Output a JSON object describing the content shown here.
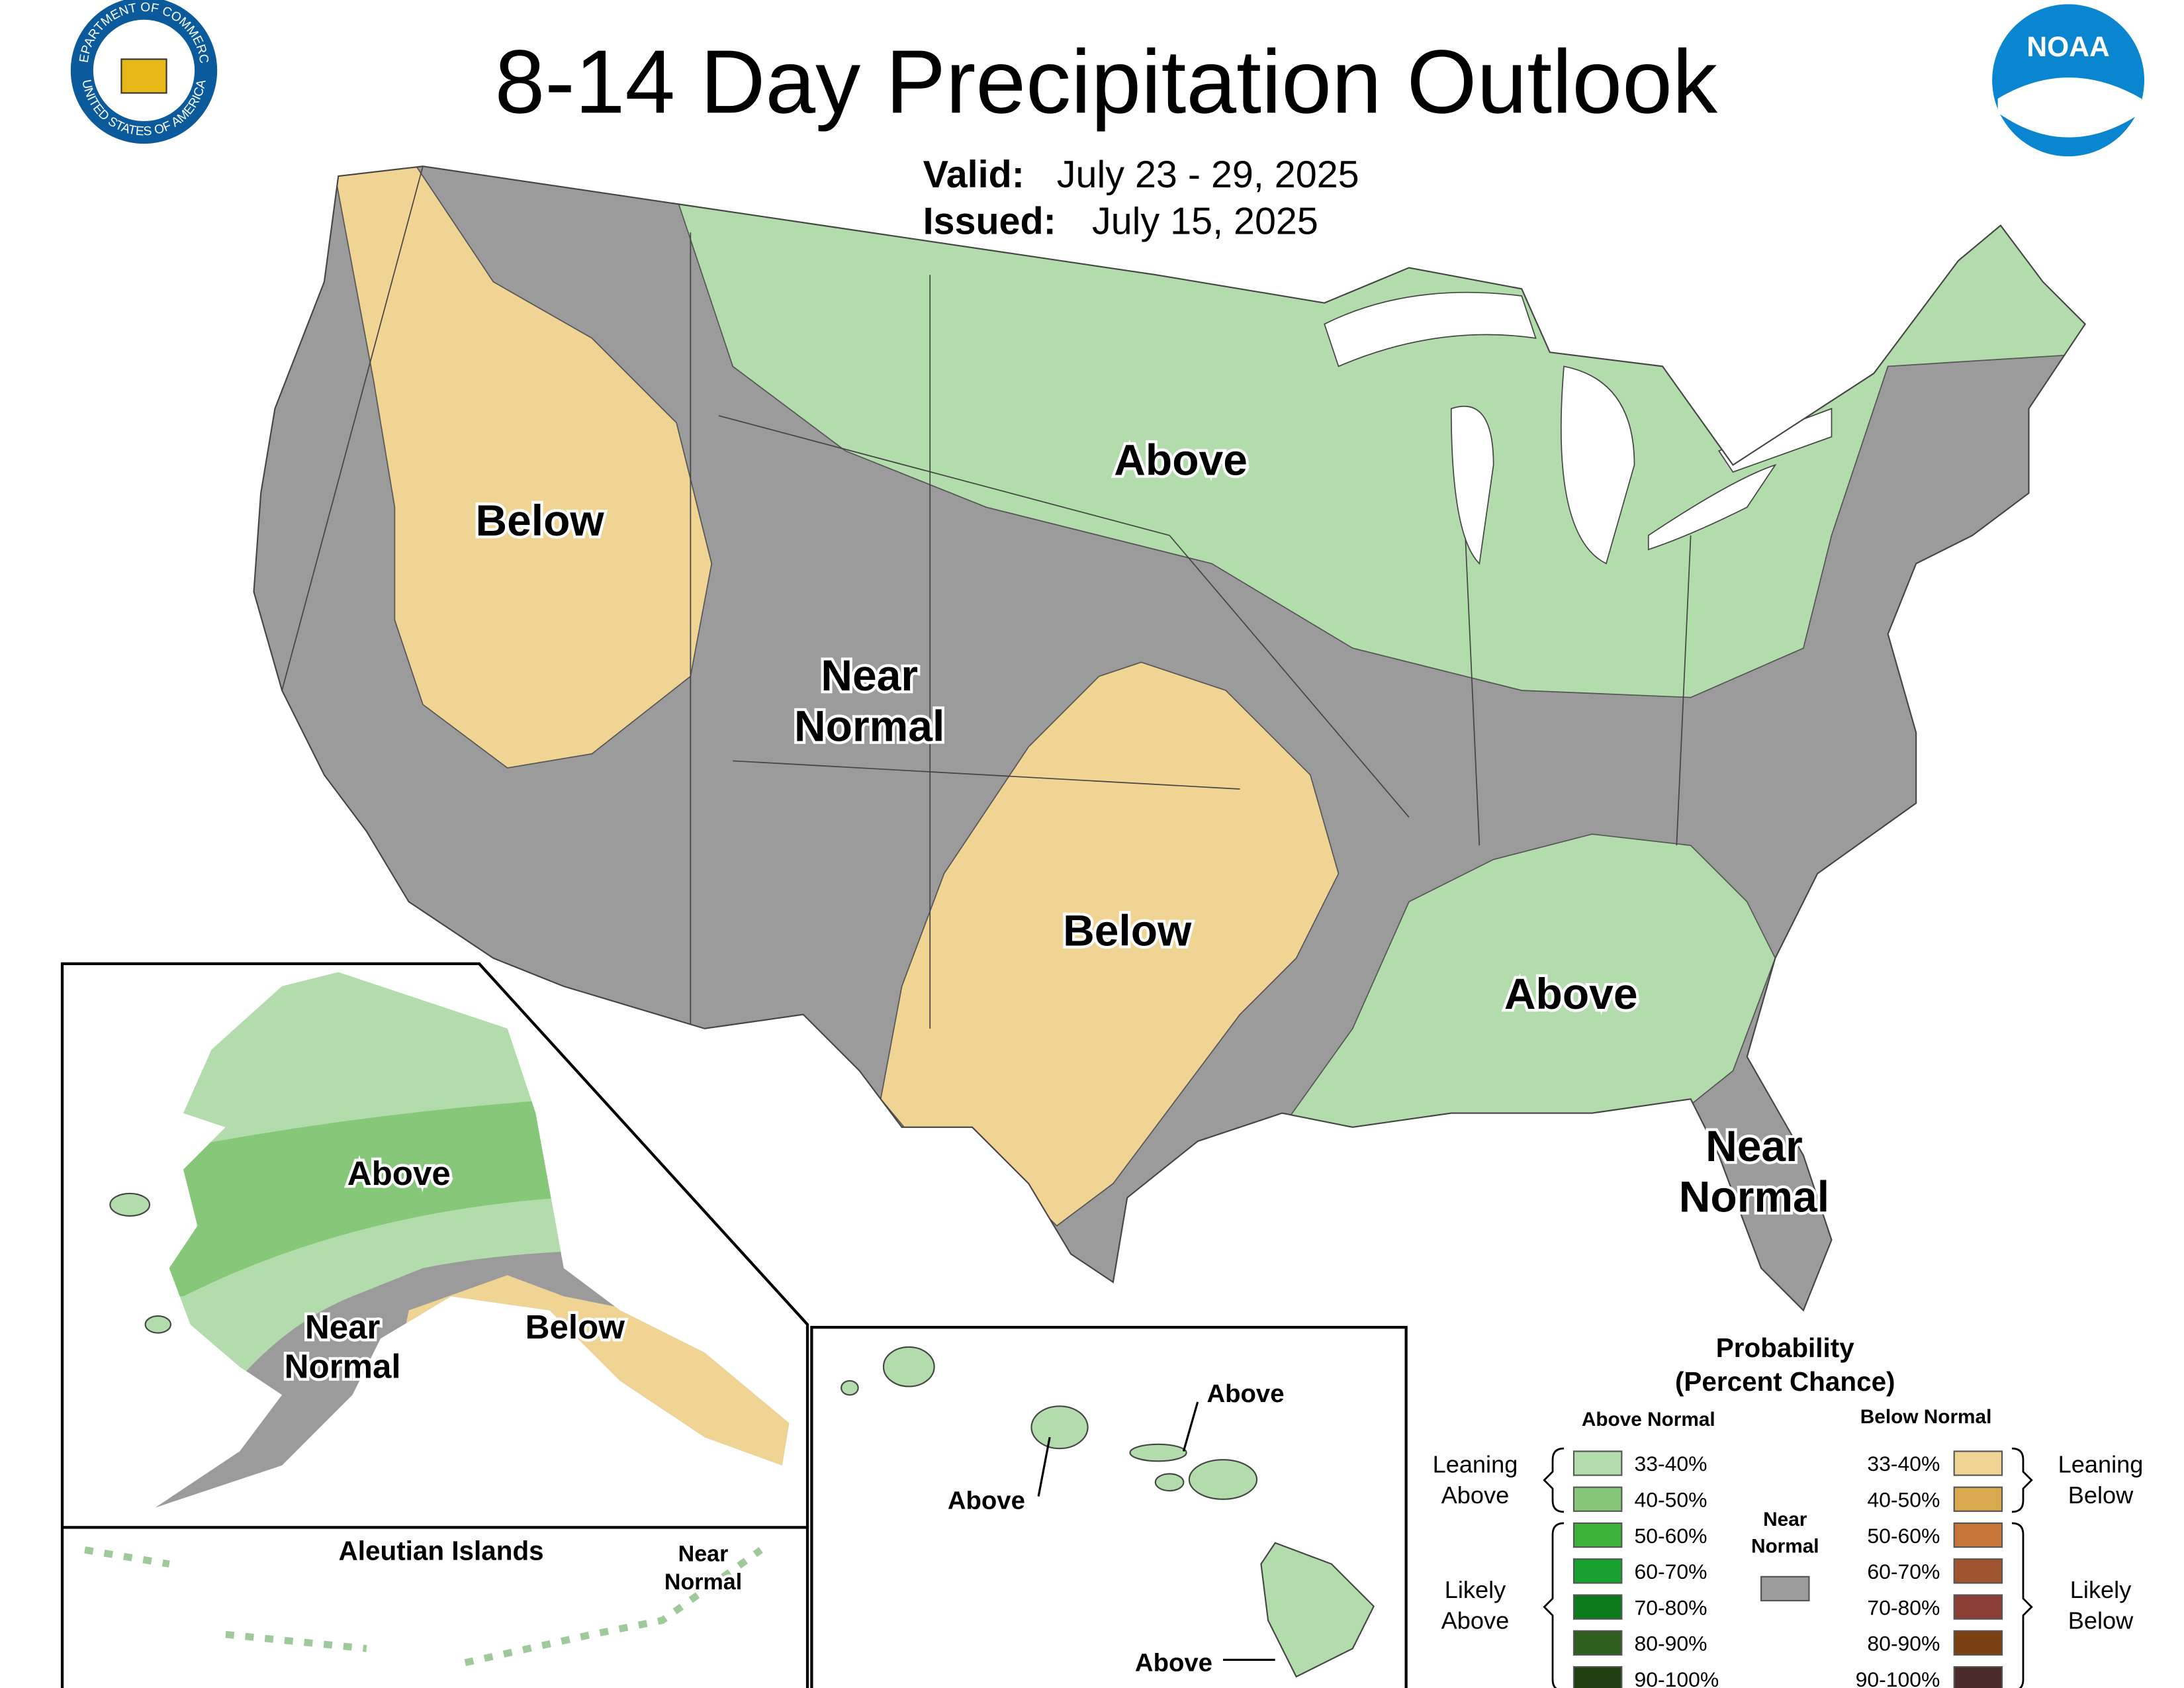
{
  "header": {
    "title": "8-14 Day Precipitation Outlook",
    "valid_label": "Valid:",
    "valid_dates": "July 23 - 29, 2025",
    "issued_label": "Issued:",
    "issued_date": "July 15, 2025"
  },
  "logos": {
    "commerce_top": "DEPARTMENT OF COMMERCE",
    "commerce_bottom": "UNITED STATES OF AMERICA",
    "noaa": "NOAA"
  },
  "conus_labels": [
    {
      "lines": [
        "Below"
      ]
    },
    {
      "lines": [
        "Near",
        "Normal"
      ]
    },
    {
      "lines": [
        "Above"
      ]
    },
    {
      "lines": [
        "Below"
      ]
    },
    {
      "lines": [
        "Above"
      ]
    },
    {
      "lines": [
        "Near",
        "Normal"
      ]
    }
  ],
  "alaska_labels": [
    {
      "lines": [
        "Above"
      ]
    },
    {
      "lines": [
        "Near",
        "Normal"
      ]
    },
    {
      "lines": [
        "Below"
      ]
    }
  ],
  "aleutian": {
    "title": "Aleutian Islands",
    "label": [
      "Near",
      "Normal"
    ]
  },
  "hawaii_labels": [
    "Above",
    "Above",
    "Above"
  ],
  "legend": {
    "title": [
      "Probability",
      "(Percent Chance)"
    ],
    "above_heading": "Above Normal",
    "below_heading": "Below Normal",
    "near_normal": [
      "Near",
      "Normal"
    ],
    "near_color": "#9b9b9b",
    "leaning_above": [
      "Leaning",
      "Above"
    ],
    "likely_above": [
      "Likely",
      "Above"
    ],
    "leaning_below": [
      "Leaning",
      "Below"
    ],
    "likely_below": [
      "Likely",
      "Below"
    ],
    "above": [
      {
        "label": "33-40%",
        "color": "#b3dcac"
      },
      {
        "label": "40-50%",
        "color": "#87c77a"
      },
      {
        "label": "50-60%",
        "color": "#3db23a"
      },
      {
        "label": "60-70%",
        "color": "#17a12f"
      },
      {
        "label": "70-80%",
        "color": "#0a7a1a"
      },
      {
        "label": "80-90%",
        "color": "#2e5f1e"
      },
      {
        "label": "90-100%",
        "color": "#1e4010"
      }
    ],
    "below": [
      {
        "label": "33-40%",
        "color": "#f0d493"
      },
      {
        "label": "40-50%",
        "color": "#d8a94f"
      },
      {
        "label": "50-60%",
        "color": "#c5753a"
      },
      {
        "label": "60-70%",
        "color": "#a0542e"
      },
      {
        "label": "70-80%",
        "color": "#8b3e35"
      },
      {
        "label": "80-90%",
        "color": "#7a4010"
      },
      {
        "label": "90-100%",
        "color": "#4a2a2a"
      }
    ]
  }
}
